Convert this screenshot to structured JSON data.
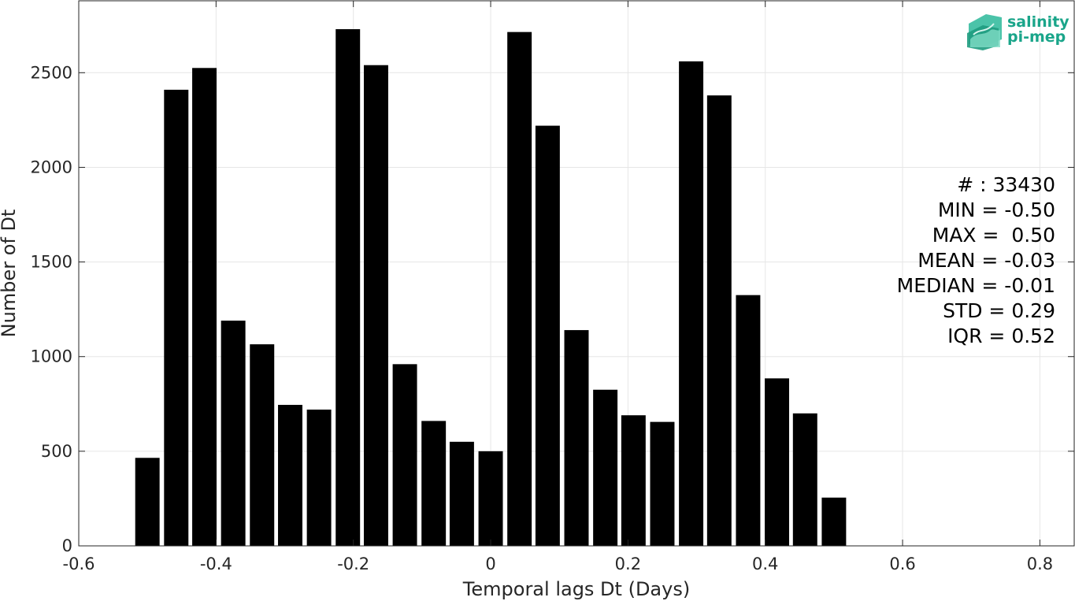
{
  "chart_data": {
    "type": "bar",
    "xlabel": "Temporal lags Dt (Days)",
    "ylabel": "Number of Dt",
    "xlim": [
      -0.6,
      0.85
    ],
    "ylim": [
      0,
      2880
    ],
    "xticks": [
      -0.6,
      -0.4,
      -0.2,
      0,
      0.2,
      0.4,
      0.6,
      0.8
    ],
    "xtick_labels": [
      "-0.6",
      "-0.4",
      "-0.2",
      "0",
      "0.2",
      "0.4",
      "0.6",
      "0.8"
    ],
    "yticks": [
      0,
      500,
      1000,
      1500,
      2000,
      2500
    ],
    "ytick_labels": [
      "0",
      "500",
      "1000",
      "1500",
      "2000",
      "2500"
    ],
    "grid": true,
    "bar_color": "#000000",
    "x": [
      -0.5,
      -0.458,
      -0.417,
      -0.375,
      -0.333,
      -0.292,
      -0.25,
      -0.208,
      -0.167,
      -0.125,
      -0.083,
      -0.042,
      0.0,
      0.042,
      0.083,
      0.125,
      0.167,
      0.208,
      0.25,
      0.292,
      0.333,
      0.375,
      0.417,
      0.458,
      0.5
    ],
    "values": [
      465,
      2410,
      2525,
      1190,
      1065,
      745,
      720,
      2730,
      2540,
      960,
      660,
      550,
      500,
      2715,
      2220,
      1140,
      825,
      690,
      655,
      2560,
      2380,
      1325,
      885,
      700,
      255
    ],
    "annotations": [
      "# : 33430",
      "MIN = -0.50",
      "MAX =  0.50",
      "MEAN = -0.03",
      "MEDIAN = -0.01",
      "STD = 0.29",
      "IQR = 0.52"
    ]
  },
  "logo": {
    "line1": "salinity",
    "line2": "pi-mep",
    "color": "#1aa58a"
  }
}
